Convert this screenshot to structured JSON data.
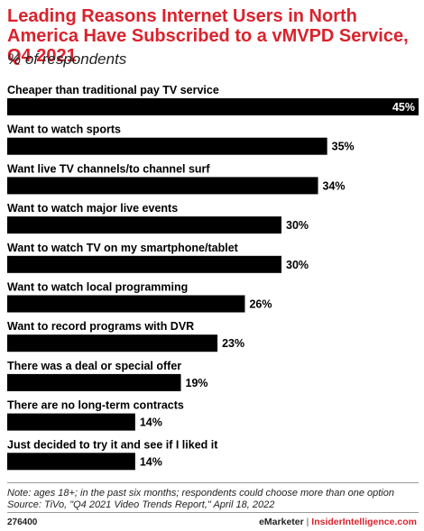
{
  "chart_data": {
    "type": "bar",
    "orientation": "horizontal",
    "title": "Leading Reasons Internet Users in North America Have Subscribed to a vMVPD Service, Q4 2021",
    "subtitle": "% of respondents",
    "categories": [
      "Cheaper than traditional pay TV service",
      "Want to watch sports",
      "Want live TV channels/to channel surf",
      "Want to watch major live events",
      "Want to watch TV on my smartphone/tablet",
      "Want to watch local programming",
      "Want to record programs with DVR",
      "There was a deal or special offer",
      "There are no long-term contracts",
      "Just decided to try it and see if I liked it"
    ],
    "values": [
      45,
      35,
      34,
      30,
      30,
      26,
      23,
      19,
      14,
      14
    ],
    "value_labels": [
      "45%",
      "35%",
      "34%",
      "30%",
      "30%",
      "26%",
      "23%",
      "19%",
      "14%",
      "14%"
    ],
    "xlim": [
      0,
      45
    ],
    "grid": false,
    "bar_color": "#000000"
  },
  "note": "Note: ages 18+; in the past six months; respondents could choose more than one option",
  "source": "Source: TiVo, \"Q4 2021 Video Trends Report,\" April 18, 2022",
  "footer": {
    "id": "276400",
    "brand1": "eMarketer",
    "separator": "|",
    "brand2": "InsiderIntelligence.com"
  }
}
